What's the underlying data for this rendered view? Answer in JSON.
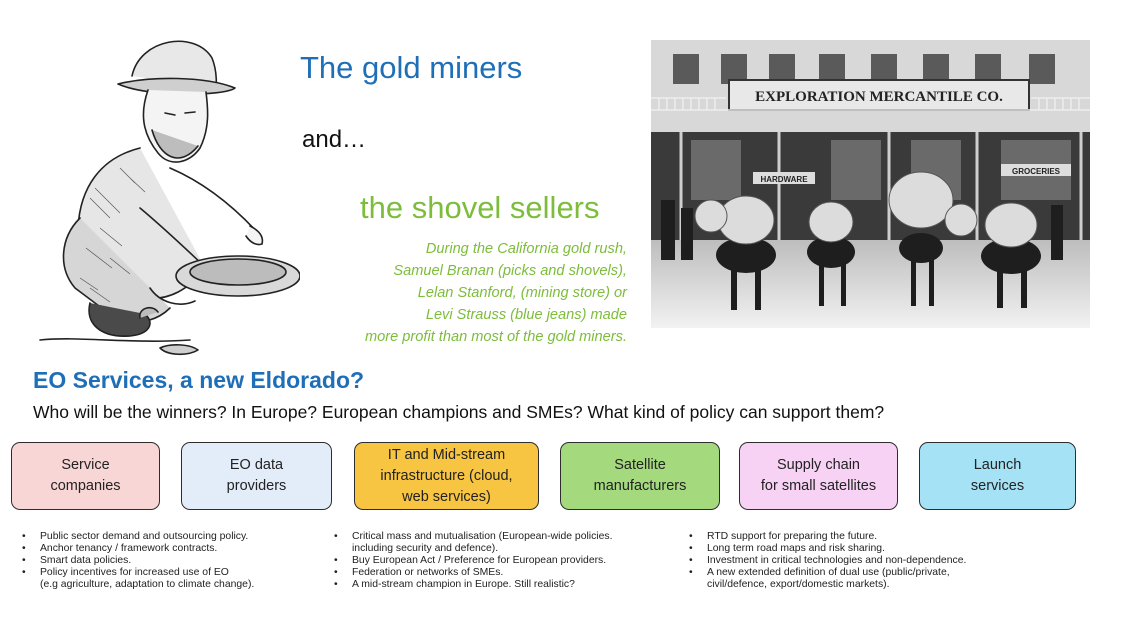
{
  "header": {
    "title_gold": "The gold miners",
    "title_and": "and…",
    "title_shovel": "the shovel sellers",
    "quote_lines": [
      "During the California gold rush,",
      "Samuel Branan (picks and shovels),",
      "Lelan Stanford, (mining store) or",
      "Levi Strauss (blue jeans) made",
      "more profit than most of the gold miners."
    ]
  },
  "photo": {
    "sign_text": "EXPLORATION MERCANTILE CO.",
    "left_sign": "HARDWARE",
    "right_sign": "GROCERIES"
  },
  "headline": {
    "title": "EO Services, a new Eldorado?",
    "question": "Who will be the winners?  In Europe? European champions and SMEs? What kind of policy can support them?"
  },
  "categories": [
    {
      "lines": [
        "Service",
        "companies"
      ],
      "color": "#f9d6d6"
    },
    {
      "lines": [
        "EO data",
        "providers"
      ],
      "color": "#e3edf9"
    },
    {
      "lines": [
        "IT and Mid-stream",
        "infrastructure (cloud,",
        "web services)"
      ],
      "color": "#f8c542"
    },
    {
      "lines": [
        "Satellite",
        "manufacturers"
      ],
      "color": "#a4d97e"
    },
    {
      "lines": [
        "Supply chain",
        "for small satellites"
      ],
      "color": "#f7d2f4"
    },
    {
      "lines": [
        "Launch",
        "services"
      ],
      "color": "#a6e2f6"
    }
  ],
  "bullets": {
    "left": [
      "Public sector demand and outsourcing policy.",
      "Anchor tenancy / framework contracts.",
      "Smart data policies.",
      "Policy incentives for increased use of EO",
      "(e.g agriculture, adaptation to climate change)."
    ],
    "middle": [
      "Critical mass and mutualisation (European-wide policies.",
      "including security and defence).",
      "Buy European Act / Preference for European providers.",
      "Federation or networks of SMEs.",
      "A mid-stream champion in Europe. Still realistic?"
    ],
    "right": [
      "RTD support for preparing the future.",
      "Long term road maps and risk sharing.",
      "Investment in critical technologies and non-dependence.",
      "A new extended definition of dual use (public/private,",
      "civil/defence, export/domestic markets)."
    ]
  }
}
